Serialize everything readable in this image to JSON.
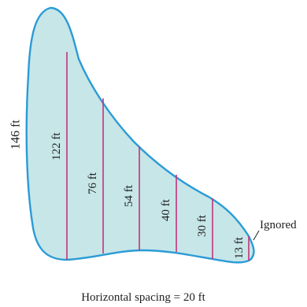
{
  "diagram": {
    "left_edge_label": "146 ft",
    "chord_labels": [
      "122 ft",
      "76 ft",
      "54 ft",
      "40 ft",
      "30 ft",
      "13 ft"
    ],
    "ignored_label": "Ignored",
    "caption": "Horizontal spacing = 20 ft",
    "colors": {
      "fill": "#c7e6e8",
      "outline": "#2b9bd6",
      "chords": "#c2337c",
      "text": "#1f1f1f"
    }
  }
}
